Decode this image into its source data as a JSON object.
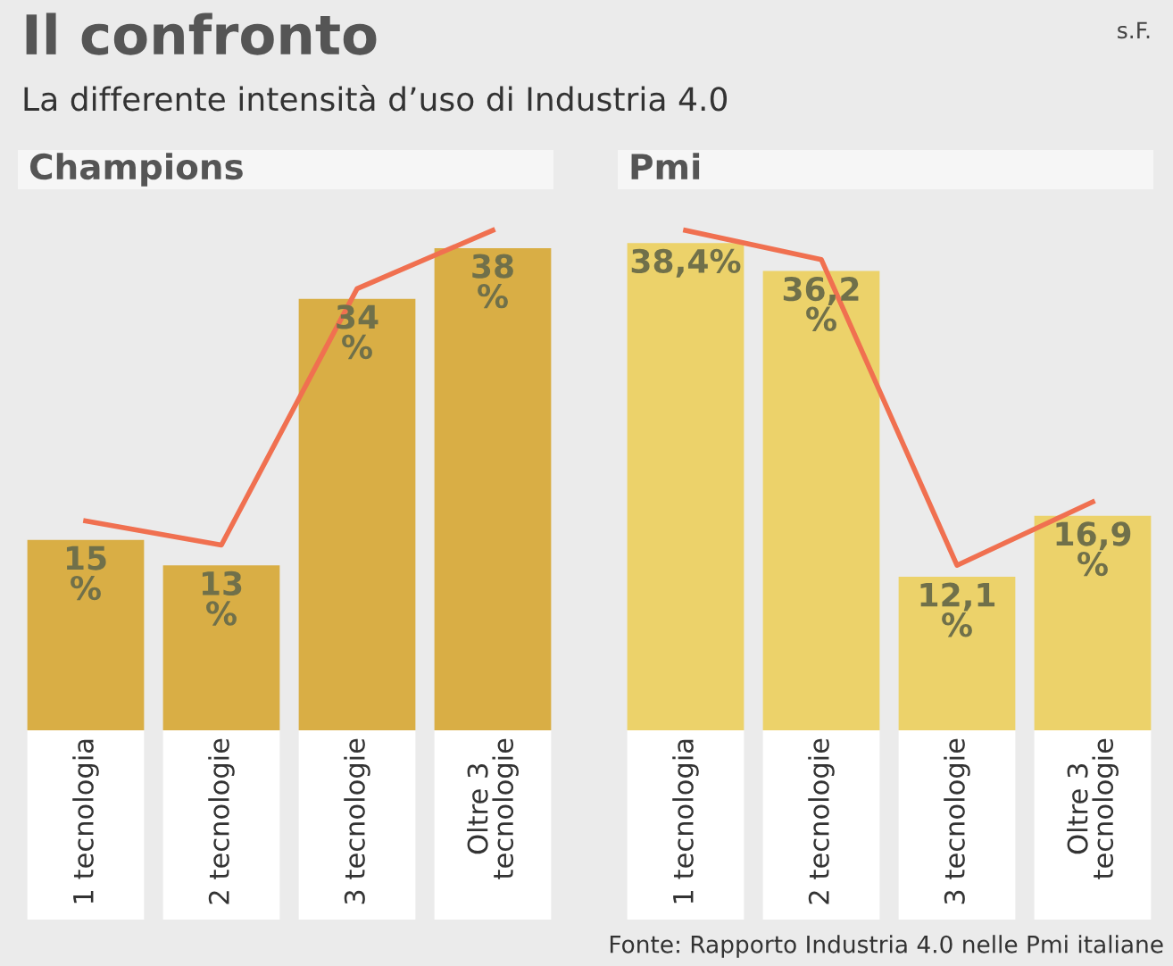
{
  "chart_data": [
    {
      "type": "bar",
      "title": "Il confronto",
      "subtitle": "La differente intensità d’uso di Industria 4.0",
      "annotations": [
        "Champions",
        "s.F."
      ],
      "categories": [
        "1 tecnologia",
        "2 tecnologie",
        "3 tecnologie",
        "Oltre 3\ntecnologie"
      ],
      "series": [
        {
          "color": "#d9ae45",
          "values": [
            15,
            13,
            34,
            38
          ],
          "value_labels": [
            "15\n%",
            "13\n%",
            "34\n%",
            "38\n%"
          ]
        },
        {
          "type": "line",
          "color": "#f07050",
          "values": [
            16.5,
            14.6,
            34.8,
            39.4
          ]
        }
      ],
      "tick_labels": "x"
    },
    {
      "type": "bar",
      "annotations": [
        "Pmi",
        "Fonte: Rapporto Industria 4.0 nelle Pmi italiane"
      ],
      "categories": [
        "1 tecnologia",
        "2 tecnologie",
        "3 tecnologie",
        "Oltre 3\ntecnologie"
      ],
      "series": [
        {
          "color": "#ecd26a",
          "values": [
            38.4,
            36.2,
            12.1,
            16.9
          ],
          "value_labels": [
            "38,4%",
            "36,2\n%",
            "12,1\n%",
            "16,9\n%"
          ]
        },
        {
          "type": "line",
          "color": "#f07050",
          "values": [
            39.4,
            37.1,
            13.0,
            18.0
          ]
        }
      ],
      "tick_labels": "x"
    }
  ]
}
